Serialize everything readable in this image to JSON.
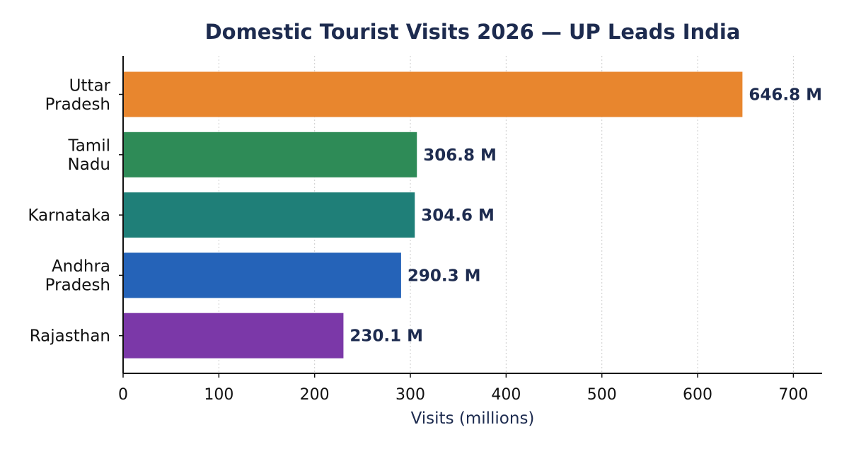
{
  "chart_data": {
    "type": "bar",
    "orientation": "horizontal",
    "title": "Domestic Tourist Visits 2026 — UP Leads India",
    "xlabel": "Visits (millions)",
    "ylabel": "",
    "xlim": [
      0,
      730
    ],
    "xticks": [
      0,
      100,
      200,
      300,
      400,
      500,
      600,
      700
    ],
    "grid": "vertical dotted",
    "categories": [
      [
        "Uttar",
        "Pradesh"
      ],
      [
        "Tamil",
        "Nadu"
      ],
      [
        "Karnataka"
      ],
      [
        "Andhra",
        "Pradesh"
      ],
      [
        "Rajasthan"
      ]
    ],
    "values": [
      646.8,
      306.8,
      304.6,
      290.3,
      230.1
    ],
    "data_labels": [
      "646.8 M",
      "306.8 M",
      "304.6 M",
      "290.3 M",
      "230.1 M"
    ],
    "colors": [
      "#E8862E",
      "#2E8B57",
      "#1F7F78",
      "#2563B8",
      "#7B38A8"
    ],
    "text_color": "#1d2b4f"
  }
}
